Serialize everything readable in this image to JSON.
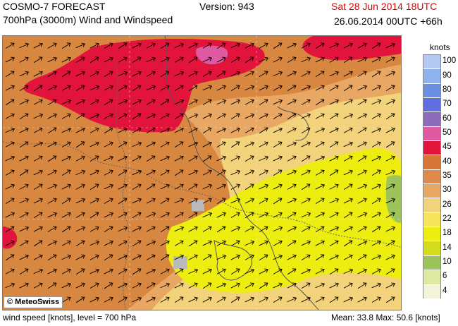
{
  "header": {
    "title": "COSMO-7 FORECAST",
    "version": "Version: 943",
    "valid_time": "Sat 28 Jun 2014 18UTC",
    "subtitle": "700hPa (3000m) Wind and Windspeed",
    "run_time": "26.06.2014 00UTC +66h"
  },
  "map": {
    "logo": "© MeteoSwiss",
    "wind_direction": "south-west (arrows pointing north-east)"
  },
  "legend": {
    "title": "knots",
    "levels": [
      "100",
      "90",
      "80",
      "70",
      "60",
      "50",
      "45",
      "40",
      "35",
      "30",
      "26",
      "22",
      "18",
      "14",
      "10",
      "6",
      "4"
    ],
    "colors": [
      "#b5c8f2",
      "#8fb3ec",
      "#6b8fe2",
      "#5f6fe0",
      "#8c6cb8",
      "#e05aa2",
      "#e2143c",
      "#d8763a",
      "#de8a4a",
      "#e8a762",
      "#f2d27a",
      "#f5e45c",
      "#eded10",
      "#d4dc1e",
      "#9cc45a",
      "#dde8a2",
      "#f3f3da"
    ]
  },
  "footer": {
    "left": "wind speed [knots], level = 700 hPa",
    "right": "Mean:   33.8 Max:   50.6 [knots]"
  },
  "colors": {
    "valid_time": "#e00000",
    "field_max": "#e2143c",
    "field_high": "#d88740",
    "field_mid": "#e8a762",
    "field_pale": "#f2d27a",
    "field_yellow": "#eded10",
    "field_green": "#9cc45a"
  }
}
